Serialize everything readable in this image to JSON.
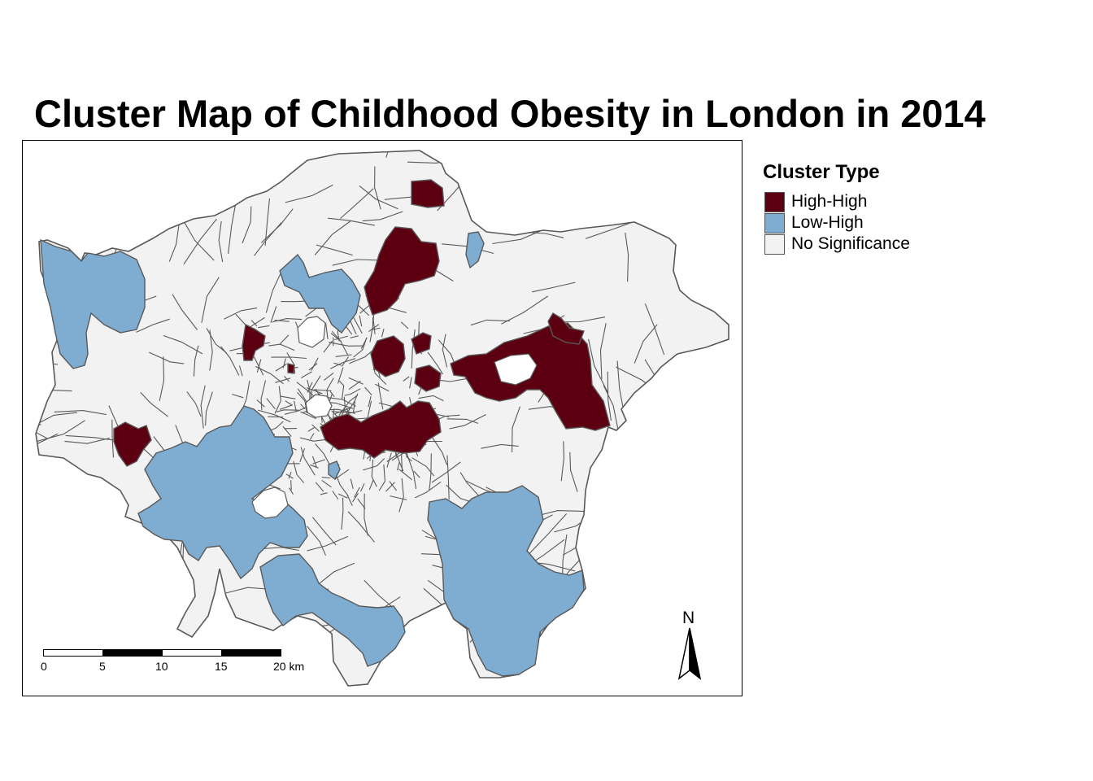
{
  "title": "Cluster Map of Childhood Obesity in London in 2014",
  "legend": {
    "title": "Cluster Type",
    "items": [
      {
        "label": "High-High",
        "color": "#5c0011"
      },
      {
        "label": "Low-High",
        "color": "#7eadd1"
      },
      {
        "label": "No Significance",
        "color": "#f2f2f2"
      }
    ]
  },
  "scale_bar": {
    "labels": [
      "0",
      "5",
      "10",
      "15",
      "20 km"
    ]
  },
  "north_arrow": {
    "label": "N",
    "icon": "north-arrow-icon"
  },
  "colors": {
    "border": "#595959",
    "frame": "#000000"
  }
}
